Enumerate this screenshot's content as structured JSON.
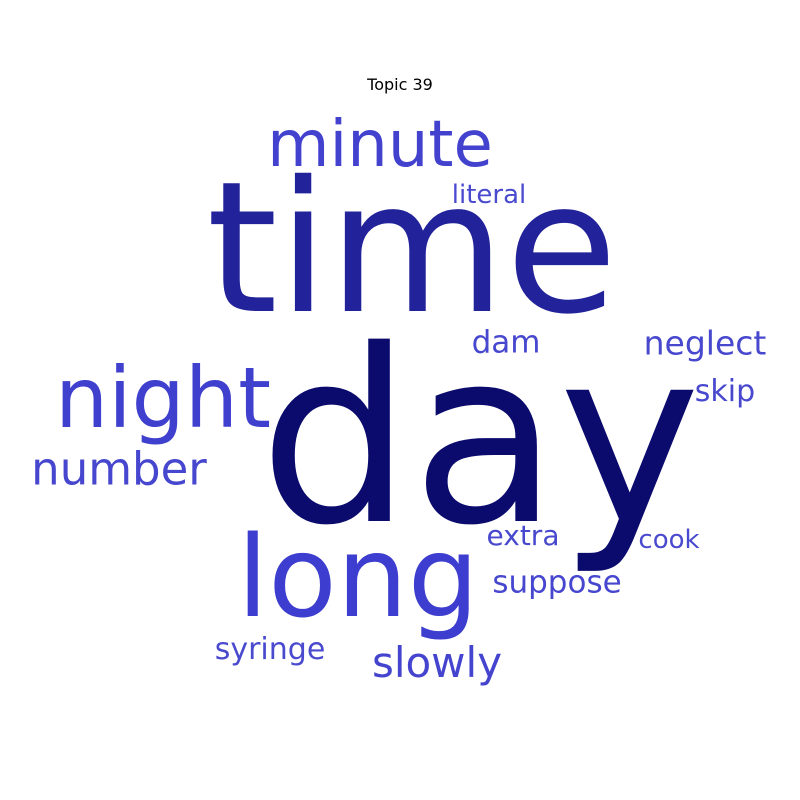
{
  "title": "Topic 39",
  "words": {
    "time": {
      "text": "time",
      "color": "#22229a"
    },
    "day": {
      "text": "day",
      "color": "#0b0b6e"
    },
    "minute": {
      "text": "minute",
      "color": "#4242cf"
    },
    "night": {
      "text": "night",
      "color": "#4040cf"
    },
    "long": {
      "text": "long",
      "color": "#3d3dcf"
    },
    "number": {
      "text": "number",
      "color": "#4646cf"
    },
    "literal": {
      "text": "literal",
      "color": "#4a4acf"
    },
    "dam": {
      "text": "dam",
      "color": "#4848cf"
    },
    "neglect": {
      "text": "neglect",
      "color": "#4848cf"
    },
    "skip": {
      "text": "skip",
      "color": "#4848cf"
    },
    "extra": {
      "text": "extra",
      "color": "#4848cf"
    },
    "cook": {
      "text": "cook",
      "color": "#4a4acf"
    },
    "suppose": {
      "text": "suppose",
      "color": "#4646cf"
    },
    "syringe": {
      "text": "syringe",
      "color": "#4a4acf"
    },
    "slowly": {
      "text": "slowly",
      "color": "#4444cf"
    }
  }
}
